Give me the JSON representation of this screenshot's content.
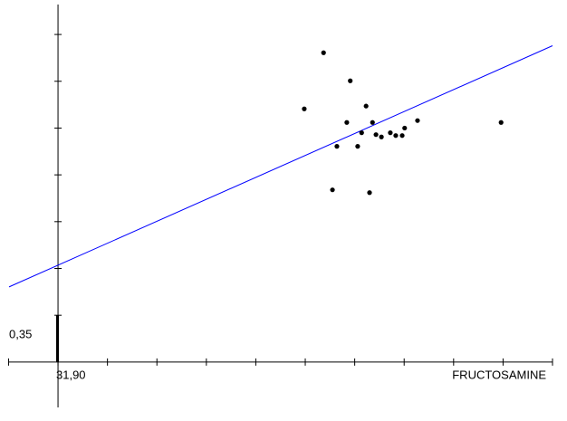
{
  "chart_data": {
    "type": "scatter",
    "x_axis_label": "FRUCTOSAMINE",
    "x_origin_label": "31,90",
    "y_origin_label": "0,35",
    "x": [
      4.98,
      5.37,
      5.91,
      6.23,
      5.84,
      6.36,
      6.14,
      5.64,
      6.06,
      6.43,
      6.54,
      6.72,
      6.83,
      6.96,
      7.01,
      7.27,
      5.55,
      6.3,
      8.96
    ],
    "values": [
      5.41,
      6.61,
      6.01,
      5.47,
      5.12,
      5.12,
      4.9,
      4.61,
      4.61,
      4.86,
      4.81,
      4.9,
      4.84,
      4.84,
      5.0,
      5.16,
      3.68,
      3.62,
      5.12
    ],
    "color": "#000000",
    "regression": {
      "intercept": 2.07,
      "slope": 0.469,
      "color": "#0000ff"
    },
    "xlim": [
      -0.99,
      10.0
    ],
    "ylim": [
      -0.97,
      7.64
    ],
    "xticks": [
      -1,
      0,
      1,
      2,
      3,
      4,
      5,
      6,
      7,
      8,
      9,
      10
    ],
    "yticks": [
      1,
      2,
      3,
      4,
      5,
      6,
      7
    ]
  }
}
